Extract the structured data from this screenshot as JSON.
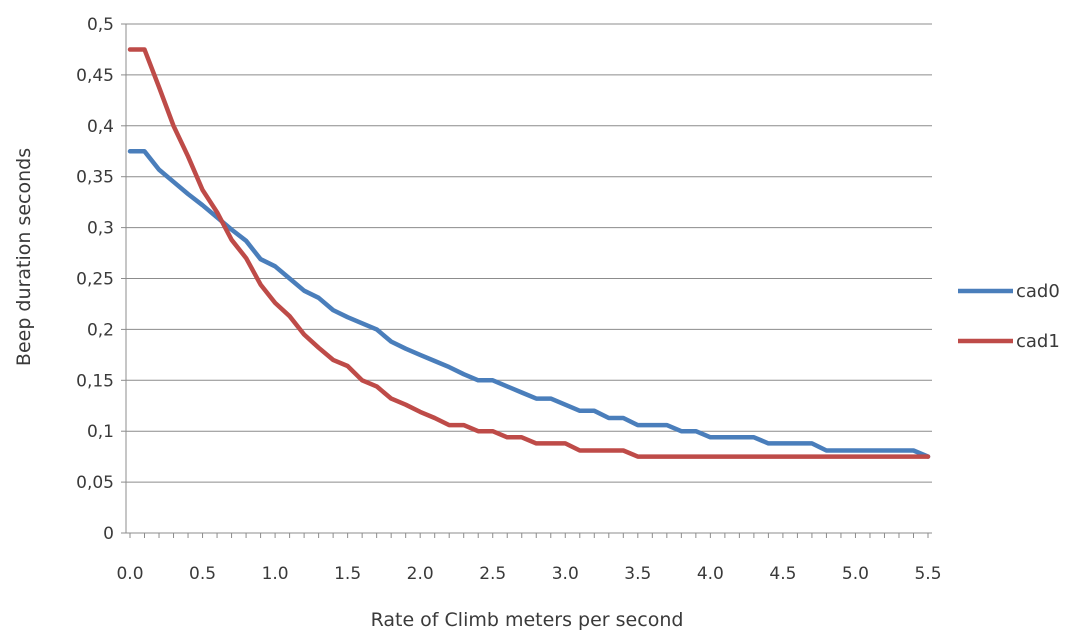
{
  "chart_data": {
    "type": "line",
    "title": "",
    "xlabel": "Rate of Climb meters per second",
    "ylabel": "Beep duration seconds",
    "xlim": [
      0,
      5.5
    ],
    "ylim": [
      0,
      0.5
    ],
    "grid": true,
    "legend_position": "right",
    "x_tick_labels": [
      "0.0",
      "0.5",
      "1.0",
      "1.5",
      "2.0",
      "2.5",
      "3.0",
      "3.5",
      "4.0",
      "4.5",
      "5.0",
      "5.5"
    ],
    "y_ticks": [
      0,
      0.05,
      0.1,
      0.15,
      0.2,
      0.25,
      0.3,
      0.35,
      0.4,
      0.45,
      0.5
    ],
    "y_tick_labels": [
      "0",
      "0,05",
      "0,1",
      "0,15",
      "0,2",
      "0,25",
      "0,3",
      "0,35",
      "0,4",
      "0,45",
      "0,5"
    ],
    "series": [
      {
        "name": "cad0",
        "color": "#4a7ebb",
        "points": [
          [
            0.0,
            0.375
          ],
          [
            0.1,
            0.375
          ],
          [
            0.2,
            0.357
          ],
          [
            0.3,
            0.345
          ],
          [
            0.4,
            0.333
          ],
          [
            0.5,
            0.322
          ],
          [
            0.6,
            0.31
          ],
          [
            0.7,
            0.298
          ],
          [
            0.8,
            0.287
          ],
          [
            0.9,
            0.269
          ],
          [
            1.0,
            0.262
          ],
          [
            1.1,
            0.25
          ],
          [
            1.2,
            0.238
          ],
          [
            1.3,
            0.231
          ],
          [
            1.4,
            0.219
          ],
          [
            1.5,
            0.212
          ],
          [
            1.6,
            0.206
          ],
          [
            1.7,
            0.2
          ],
          [
            1.8,
            0.188
          ],
          [
            1.9,
            0.181
          ],
          [
            2.0,
            0.175
          ],
          [
            2.1,
            0.169
          ],
          [
            2.2,
            0.163
          ],
          [
            2.3,
            0.156
          ],
          [
            2.4,
            0.15
          ],
          [
            2.5,
            0.15
          ],
          [
            2.6,
            0.144
          ],
          [
            2.7,
            0.138
          ],
          [
            2.8,
            0.132
          ],
          [
            2.9,
            0.132
          ],
          [
            3.0,
            0.126
          ],
          [
            3.1,
            0.12
          ],
          [
            3.2,
            0.12
          ],
          [
            3.3,
            0.113
          ],
          [
            3.4,
            0.113
          ],
          [
            3.5,
            0.106
          ],
          [
            3.6,
            0.106
          ],
          [
            3.7,
            0.106
          ],
          [
            3.8,
            0.1
          ],
          [
            3.9,
            0.1
          ],
          [
            4.0,
            0.094
          ],
          [
            4.1,
            0.094
          ],
          [
            4.2,
            0.094
          ],
          [
            4.3,
            0.094
          ],
          [
            4.4,
            0.088
          ],
          [
            4.5,
            0.088
          ],
          [
            4.6,
            0.088
          ],
          [
            4.7,
            0.088
          ],
          [
            4.8,
            0.081
          ],
          [
            4.9,
            0.081
          ],
          [
            5.0,
            0.081
          ],
          [
            5.1,
            0.081
          ],
          [
            5.2,
            0.081
          ],
          [
            5.3,
            0.081
          ],
          [
            5.4,
            0.081
          ],
          [
            5.5,
            0.075
          ]
        ]
      },
      {
        "name": "cad1",
        "color": "#be4b48",
        "points": [
          [
            0.0,
            0.475
          ],
          [
            0.1,
            0.475
          ],
          [
            0.2,
            0.438
          ],
          [
            0.3,
            0.4
          ],
          [
            0.4,
            0.37
          ],
          [
            0.5,
            0.337
          ],
          [
            0.6,
            0.315
          ],
          [
            0.7,
            0.288
          ],
          [
            0.8,
            0.27
          ],
          [
            0.9,
            0.244
          ],
          [
            1.0,
            0.226
          ],
          [
            1.1,
            0.213
          ],
          [
            1.2,
            0.195
          ],
          [
            1.3,
            0.182
          ],
          [
            1.4,
            0.17
          ],
          [
            1.5,
            0.164
          ],
          [
            1.6,
            0.15
          ],
          [
            1.7,
            0.144
          ],
          [
            1.8,
            0.132
          ],
          [
            1.9,
            0.126
          ],
          [
            2.0,
            0.119
          ],
          [
            2.1,
            0.113
          ],
          [
            2.2,
            0.106
          ],
          [
            2.3,
            0.106
          ],
          [
            2.4,
            0.1
          ],
          [
            2.5,
            0.1
          ],
          [
            2.6,
            0.094
          ],
          [
            2.7,
            0.094
          ],
          [
            2.8,
            0.088
          ],
          [
            2.9,
            0.088
          ],
          [
            3.0,
            0.088
          ],
          [
            3.1,
            0.081
          ],
          [
            3.2,
            0.081
          ],
          [
            3.3,
            0.081
          ],
          [
            3.4,
            0.081
          ],
          [
            3.5,
            0.075
          ],
          [
            3.6,
            0.075
          ],
          [
            3.7,
            0.075
          ],
          [
            3.8,
            0.075
          ],
          [
            3.9,
            0.075
          ],
          [
            4.0,
            0.075
          ],
          [
            4.1,
            0.075
          ],
          [
            4.2,
            0.075
          ],
          [
            4.3,
            0.075
          ],
          [
            4.4,
            0.075
          ],
          [
            4.5,
            0.075
          ],
          [
            4.6,
            0.075
          ],
          [
            4.7,
            0.075
          ],
          [
            4.8,
            0.075
          ],
          [
            4.9,
            0.075
          ],
          [
            5.0,
            0.075
          ],
          [
            5.1,
            0.075
          ],
          [
            5.2,
            0.075
          ],
          [
            5.3,
            0.075
          ],
          [
            5.4,
            0.075
          ],
          [
            5.5,
            0.075
          ]
        ]
      }
    ]
  }
}
